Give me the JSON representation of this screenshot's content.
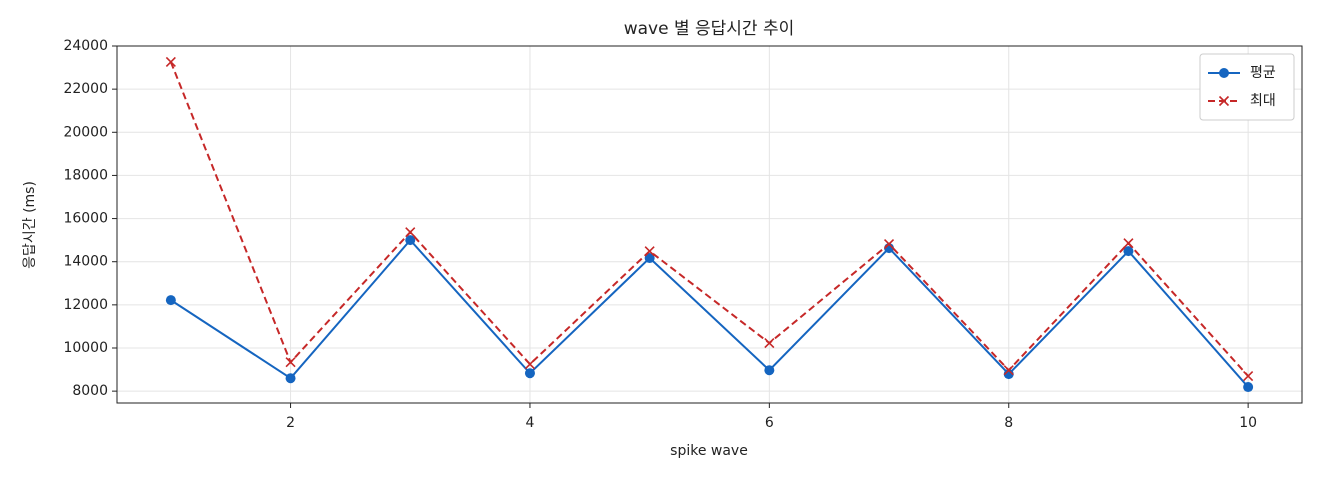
{
  "chart_data": {
    "type": "line",
    "title": "wave 별 응답시간 추이",
    "xlabel": "spike wave",
    "ylabel": "응답시간 (ms)",
    "x": [
      1,
      2,
      3,
      4,
      5,
      6,
      7,
      8,
      9,
      10
    ],
    "series": [
      {
        "name": "평균",
        "color": "#1565c0",
        "marker": "circle",
        "linestyle": "solid",
        "values": [
          12220,
          8600,
          15000,
          8830,
          14170,
          8970,
          14630,
          8790,
          14490,
          8190
        ]
      },
      {
        "name": "최대",
        "color": "#c62828",
        "marker": "x",
        "linestyle": "dashed",
        "values": [
          23260,
          9340,
          15370,
          9250,
          14490,
          10230,
          14820,
          8970,
          14860,
          8700
        ]
      }
    ],
    "xlim": [
      0.55,
      10.45
    ],
    "ylim": [
      7450,
      24000
    ],
    "xticks": [
      2,
      4,
      6,
      8,
      10
    ],
    "yticks": [
      8000,
      10000,
      12000,
      14000,
      16000,
      18000,
      20000,
      22000,
      24000
    ],
    "grid": true,
    "legend": "upper right"
  }
}
